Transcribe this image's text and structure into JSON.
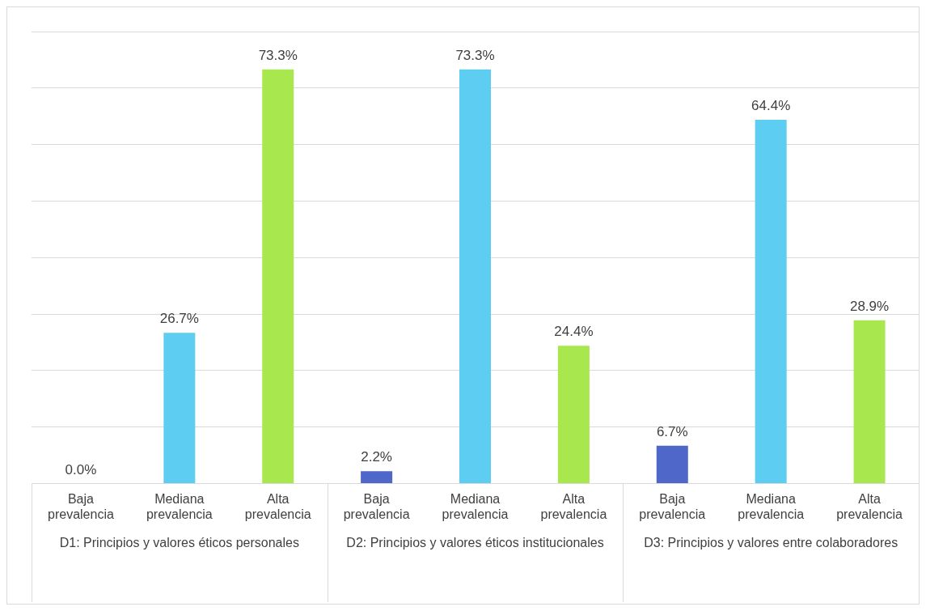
{
  "chart_data": {
    "type": "bar",
    "categories": [
      "Baja prevalencia",
      "Mediana prevalencia",
      "Alta prevalencia",
      "Baja prevalencia",
      "Mediana prevalencia",
      "Alta prevalencia",
      "Baja prevalencia",
      "Mediana prevalencia",
      "Alta prevalencia"
    ],
    "values": [
      0,
      26.7,
      73.3,
      2.2,
      73.3,
      24.4,
      6.7,
      64.4,
      28.9
    ],
    "value_labels": [
      "0.0%",
      "26.7%",
      "73.3%",
      "2.2%",
      "73.3%",
      "24.4%",
      "6.7%",
      "64.4%",
      "28.9%"
    ],
    "colors": [
      "#4f67c9",
      "#5dcdf1",
      "#a8e84e",
      "#4f67c9",
      "#5dcdf1",
      "#a8e84e",
      "#4f67c9",
      "#5dcdf1",
      "#a8e84e"
    ],
    "annotations": [
      "D1: Principios y valores éticos personales",
      "D2: Principios y valores éticos institucionales",
      "D3: Principios y valores entre colaboradores"
    ],
    "ylim": [
      0,
      80
    ],
    "grid": "y",
    "tick_labels": "x"
  }
}
